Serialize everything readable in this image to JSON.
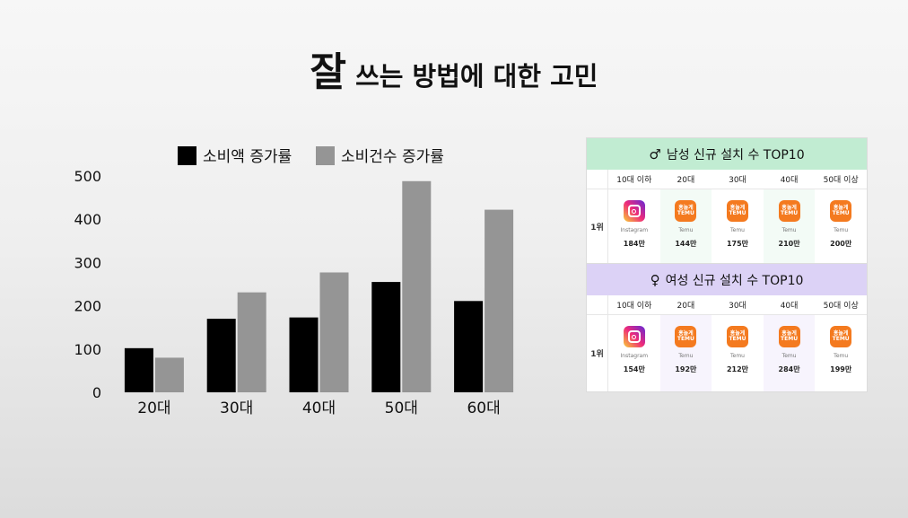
{
  "title": {
    "big": "잘",
    "rest": " 쓰는 방법에 대한 고민"
  },
  "chart_data": {
    "type": "bar",
    "categories": [
      "20대",
      "30대",
      "40대",
      "50대",
      "60대"
    ],
    "series": [
      {
        "name": "소비액 증가률",
        "color": "#000000",
        "values": [
          102,
          170,
          173,
          255,
          211
        ]
      },
      {
        "name": "소비건수 증가률",
        "color": "#959595",
        "values": [
          80,
          231,
          277,
          488,
          422
        ]
      }
    ],
    "yticks": [
      0,
      100,
      200,
      300,
      400,
      500
    ],
    "ylim": [
      0,
      500
    ],
    "legend": "top"
  },
  "table_male": {
    "header_symbol": "♂",
    "header": "남성 신규 설치 수 TOP10",
    "rank": "1위",
    "columns": [
      {
        "label": "10대 이하",
        "app": "Instagram",
        "icon": "instagram-icon",
        "value": "184만"
      },
      {
        "label": "20대",
        "app": "Temu",
        "icon": "temu-icon",
        "value": "144만"
      },
      {
        "label": "30대",
        "app": "Temu",
        "icon": "temu-icon",
        "value": "175만"
      },
      {
        "label": "40대",
        "app": "Temu",
        "icon": "temu-icon",
        "value": "210만"
      },
      {
        "label": "50대 이상",
        "app": "Temu",
        "icon": "temu-icon",
        "value": "200만"
      }
    ]
  },
  "table_female": {
    "header_symbol": "♀",
    "header": "여성 신규 설치 수 TOP10",
    "rank": "1위",
    "columns": [
      {
        "label": "10대 이하",
        "app": "Instagram",
        "icon": "instagram-icon",
        "value": "154만"
      },
      {
        "label": "20대",
        "app": "Temu",
        "icon": "temu-icon",
        "value": "192만"
      },
      {
        "label": "30대",
        "app": "Temu",
        "icon": "temu-icon",
        "value": "212만"
      },
      {
        "label": "40대",
        "app": "Temu",
        "icon": "temu-icon",
        "value": "284만"
      },
      {
        "label": "50대 이상",
        "app": "Temu",
        "icon": "temu-icon",
        "value": "199만"
      }
    ]
  },
  "temu_logo": {
    "line1": "홍놀게",
    "line2": "TEMU"
  }
}
